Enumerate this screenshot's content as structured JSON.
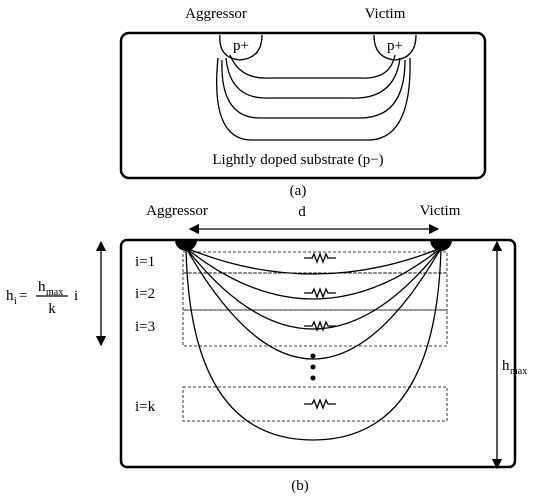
{
  "panel_a": {
    "aggressor": "Aggressor",
    "victim": "Victim",
    "left_contact": "p+",
    "right_contact": "p+",
    "substrate": "Lightly doped substrate (p−)",
    "caption": "(a)"
  },
  "panel_b": {
    "aggressor": "Aggressor",
    "distance": "d",
    "victim": "Victim",
    "rows": [
      "i=1",
      "i=2",
      "i=3",
      "i=k"
    ],
    "formula": {
      "lhs": "h",
      "lhs_sub": "i",
      "eq": "=",
      "num": "h",
      "num_sub": "max",
      "den": "k",
      "factor": "i"
    },
    "depth": {
      "main": "h",
      "sub": "max"
    },
    "caption": "(b)"
  }
}
